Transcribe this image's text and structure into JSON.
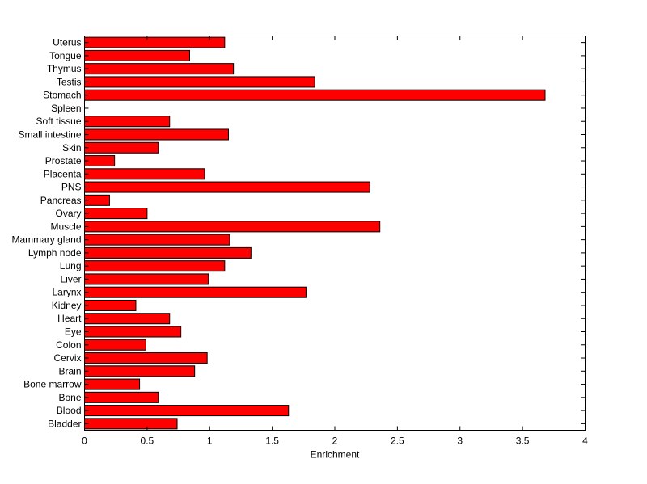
{
  "chart_data": {
    "type": "bar",
    "orientation": "horizontal",
    "xlabel": "Enrichment",
    "ylabel": "",
    "title": "",
    "xlim": [
      0,
      4
    ],
    "xticks": [
      0,
      0.5,
      1,
      1.5,
      2,
      2.5,
      3,
      3.5,
      4
    ],
    "xtick_labels": [
      "0",
      "0.5",
      "1",
      "1.5",
      "2",
      "2.5",
      "3",
      "3.5",
      "4"
    ],
    "grid": false,
    "legend": "none",
    "bar_color": "#ff0000",
    "bar_edge_color": "#000000",
    "categories": [
      "Bladder",
      "Blood",
      "Bone",
      "Bone marrow",
      "Brain",
      "Cervix",
      "Colon",
      "Eye",
      "Heart",
      "Kidney",
      "Larynx",
      "Liver",
      "Lung",
      "Lymph node",
      "Mammary gland",
      "Muscle",
      "Ovary",
      "Pancreas",
      "PNS",
      "Placenta",
      "Prostate",
      "Skin",
      "Small intestine",
      "Soft tissue",
      "Spleen",
      "Stomach",
      "Testis",
      "Thymus",
      "Tongue",
      "Uterus"
    ],
    "values": [
      0.74,
      1.63,
      0.59,
      0.44,
      0.88,
      0.98,
      0.49,
      0.77,
      0.68,
      0.41,
      1.77,
      0.99,
      1.12,
      1.33,
      1.16,
      2.36,
      0.5,
      0.2,
      2.28,
      0.96,
      0.24,
      0.59,
      1.15,
      0.68,
      0.0,
      3.68,
      1.84,
      1.19,
      0.84,
      1.12
    ]
  }
}
